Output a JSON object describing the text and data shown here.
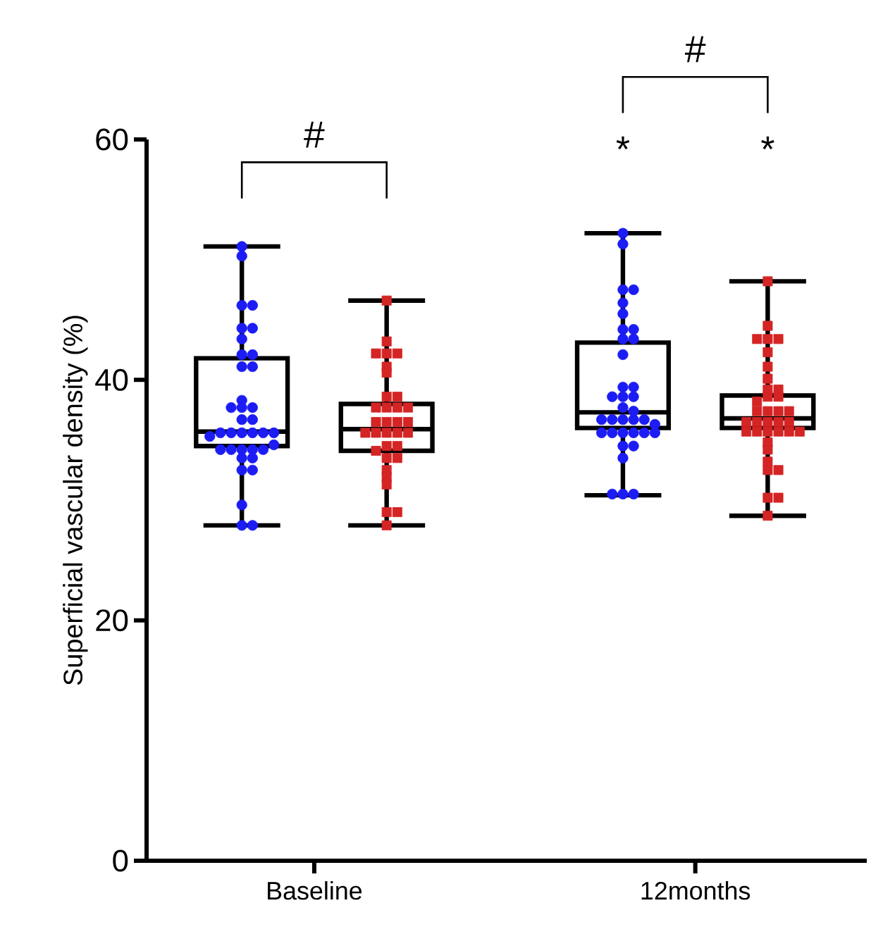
{
  "chart_data": {
    "type": "box",
    "categories": [
      "Baseline",
      "12months"
    ],
    "ylabel": "Superficial vascular density (%)",
    "ylim": [
      0,
      60
    ],
    "yticks": [
      0,
      20,
      40,
      60
    ],
    "annotations": [
      "#",
      "#",
      "*",
      "*"
    ],
    "series": [
      {
        "color": "#000000",
        "boxes": [
          {
            "low": 27.9,
            "q1": 34.5,
            "median": 35.7,
            "q3": 41.8,
            "high": 51.1
          },
          {
            "low": 30.4,
            "q1": 36.0,
            "median": 37.3,
            "q3": 43.1,
            "high": 52.2
          }
        ]
      },
      {
        "color": "#000000",
        "boxes": [
          {
            "low": 27.9,
            "q1": 34.1,
            "median": 35.9,
            "q3": 38.0,
            "high": 46.6
          },
          {
            "low": 28.7,
            "q1": 36.0,
            "median": 36.8,
            "q3": 38.7,
            "high": 48.2
          }
        ]
      },
      {
        "type": "scatter",
        "color": "#1c1cf5",
        "marker": "circle",
        "x": [
          "Baseline",
          "Baseline",
          "Baseline",
          "Baseline",
          "Baseline",
          "Baseline",
          "Baseline",
          "Baseline",
          "Baseline",
          "Baseline",
          "Baseline",
          "Baseline",
          "Baseline",
          "Baseline",
          "Baseline",
          "Baseline",
          "Baseline",
          "Baseline",
          "Baseline",
          "Baseline",
          "Baseline",
          "Baseline",
          "Baseline",
          "Baseline",
          "Baseline",
          "Baseline",
          "Baseline",
          "Baseline",
          "Baseline",
          "Baseline",
          "Baseline",
          "Baseline",
          "Baseline",
          "Baseline",
          "Baseline",
          "Baseline",
          "Baseline",
          "12months",
          "12months",
          "12months",
          "12months",
          "12months",
          "12months",
          "12months",
          "12months",
          "12months",
          "12months",
          "12months",
          "12months",
          "12months",
          "12months",
          "12months",
          "12months",
          "12months",
          "12months",
          "12months",
          "12months",
          "12months",
          "12months",
          "12months",
          "12months",
          "12months",
          "12months",
          "12months",
          "12months",
          "12months",
          "12months",
          "12months",
          "12months",
          "12months",
          "12months",
          "12months",
          "12months"
        ],
        "values": [
          51.1,
          50.3,
          46.2,
          46.2,
          44.3,
          44.3,
          43.4,
          42.1,
          42.1,
          41.1,
          41.1,
          38.3,
          37.7,
          37.7,
          37.7,
          36.7,
          36.7,
          35.6,
          35.6,
          35.6,
          35.6,
          35.6,
          35.6,
          35.3,
          34.2,
          34.2,
          34.2,
          34.2,
          34.2,
          34.6,
          33.5,
          33.5,
          32.5,
          32.5,
          29.6,
          27.9,
          27.9,
          52.2,
          51.3,
          47.5,
          47.5,
          46.4,
          45.5,
          44.2,
          44.2,
          43.4,
          43.4,
          42.1,
          39.4,
          39.4,
          38.6,
          38.6,
          38.6,
          37.7,
          37.4,
          36.7,
          36.7,
          36.7,
          36.7,
          36.7,
          36.3,
          35.6,
          35.6,
          35.6,
          35.6,
          35.6,
          35.6,
          34.5,
          34.5,
          33.5,
          30.5,
          30.5,
          30.5
        ]
      },
      {
        "type": "scatter",
        "color": "#d42424",
        "marker": "square",
        "x": [
          "Baseline",
          "Baseline",
          "Baseline",
          "Baseline",
          "Baseline",
          "Baseline",
          "Baseline",
          "Baseline",
          "Baseline",
          "Baseline",
          "Baseline",
          "Baseline",
          "Baseline",
          "Baseline",
          "Baseline",
          "Baseline",
          "Baseline",
          "Baseline",
          "Baseline",
          "Baseline",
          "Baseline",
          "Baseline",
          "Baseline",
          "Baseline",
          "Baseline",
          "Baseline",
          "Baseline",
          "Baseline",
          "Baseline",
          "Baseline",
          "Baseline",
          "Baseline",
          "Baseline",
          "12months",
          "12months",
          "12months",
          "12months",
          "12months",
          "12months",
          "12months",
          "12months",
          "12months",
          "12months",
          "12months",
          "12months",
          "12months",
          "12months",
          "12months",
          "12months",
          "12months",
          "12months",
          "12months",
          "12months",
          "12months",
          "12months",
          "12months",
          "12months",
          "12months",
          "12months",
          "12months",
          "12months",
          "12months",
          "12months",
          "12months",
          "12months",
          "12months",
          "12months",
          "12months",
          "12months"
        ],
        "values": [
          46.6,
          43.2,
          42.2,
          42.2,
          42.2,
          41.1,
          40.6,
          38.6,
          38.6,
          37.7,
          37.7,
          37.7,
          37.7,
          36.5,
          36.5,
          36.5,
          36.5,
          35.6,
          35.6,
          35.6,
          35.6,
          35.6,
          34.5,
          34.5,
          34.1,
          33.5,
          33.5,
          32.5,
          31.9,
          31.3,
          29.0,
          29.0,
          27.9,
          48.2,
          44.5,
          43.4,
          43.4,
          43.4,
          42.3,
          41.1,
          40.1,
          39.2,
          39.2,
          38.6,
          38.6,
          38.2,
          37.4,
          37.4,
          37.4,
          37.4,
          36.5,
          36.5,
          36.5,
          36.5,
          36.5,
          35.7,
          35.7,
          35.7,
          35.7,
          35.7,
          35.7,
          34.8,
          34.2,
          33.2,
          32.5,
          32.5,
          30.2,
          30.2,
          28.7
        ]
      }
    ]
  }
}
